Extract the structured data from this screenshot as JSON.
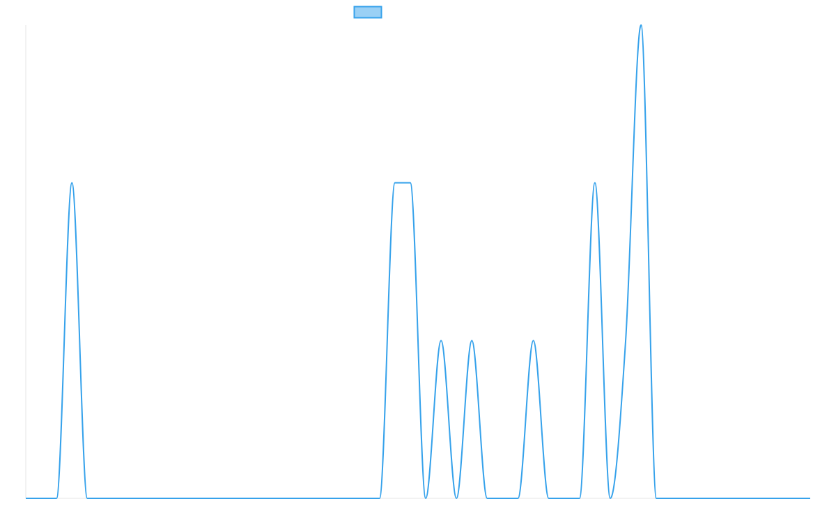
{
  "chart_data": {
    "type": "line",
    "title": "",
    "xlabel": "",
    "ylabel": "",
    "grid": false,
    "legend": {
      "position": "top-center",
      "entries": [
        ""
      ]
    },
    "colors": {
      "line": "#36a2eb",
      "legend_fill": "#9ad0f5",
      "axis": "#e5e5e5"
    },
    "x": [
      0,
      1,
      2,
      3,
      4,
      5,
      6,
      7,
      8,
      9,
      10,
      11,
      12,
      13,
      14,
      15,
      16,
      17,
      18,
      19,
      20,
      21,
      22,
      23,
      24,
      25,
      26,
      27,
      28,
      29,
      30,
      31,
      32,
      33,
      34,
      35,
      36,
      37,
      38,
      39,
      40,
      41,
      42,
      43,
      44,
      45,
      46,
      47,
      48,
      49,
      50,
      51
    ],
    "ylim": [
      0,
      3
    ],
    "series": [
      {
        "name": "",
        "values": [
          0,
          0,
          0,
          2,
          0,
          0,
          0,
          0,
          0,
          0,
          0,
          0,
          0,
          0,
          0,
          0,
          0,
          0,
          0,
          0,
          0,
          0,
          0,
          0,
          2,
          2,
          0,
          1,
          0,
          1,
          0,
          0,
          0,
          1,
          0,
          0,
          0,
          2,
          0,
          1,
          3,
          0,
          0,
          0,
          0,
          0,
          0,
          0,
          0,
          0,
          0,
          0
        ]
      }
    ]
  }
}
